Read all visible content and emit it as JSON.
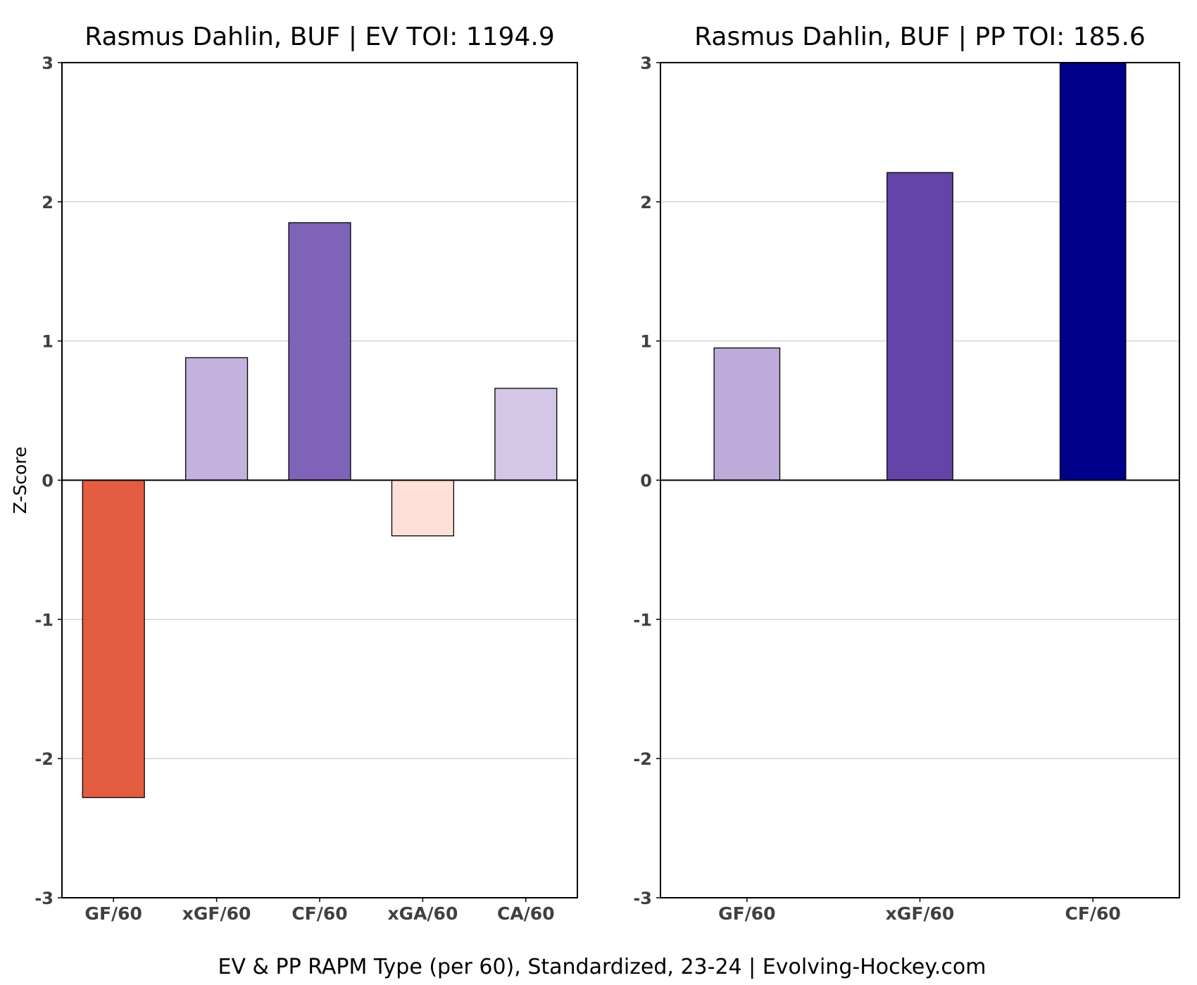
{
  "chart_data": [
    {
      "type": "bar",
      "title": "Rasmus Dahlin, BUF  |  EV TOI: 1194.9",
      "ylabel": "Z-Score",
      "ylim": [
        -3,
        3
      ],
      "yticks": [
        "3",
        "2",
        "1",
        "0",
        "-1",
        "-2",
        "-3"
      ],
      "grid": true,
      "categories": [
        "GF/60",
        "xGF/60",
        "CF/60",
        "xGA/60",
        "CA/60"
      ],
      "values": [
        -2.28,
        0.88,
        1.85,
        -0.4,
        0.66
      ],
      "colors": [
        "#e45c42",
        "#c3b2dd",
        "#7f63b8",
        "#fee0d9",
        "#d3c6e7"
      ]
    },
    {
      "type": "bar",
      "title": "Rasmus Dahlin, BUF  |  PP TOI: 185.6",
      "ylabel": "",
      "ylim": [
        -3,
        3
      ],
      "yticks": [
        "3",
        "2",
        "1",
        "0",
        "-1",
        "-2",
        "-3"
      ],
      "grid": true,
      "categories": [
        "GF/60",
        "xGF/60",
        "CF/60"
      ],
      "values": [
        0.95,
        2.21,
        3.0
      ],
      "colors": [
        "#bfabd9",
        "#6344a8",
        "#00008b"
      ]
    }
  ],
  "caption": "EV & PP RAPM Type (per 60), Standardized, 23-24    |    Evolving-Hockey.com"
}
